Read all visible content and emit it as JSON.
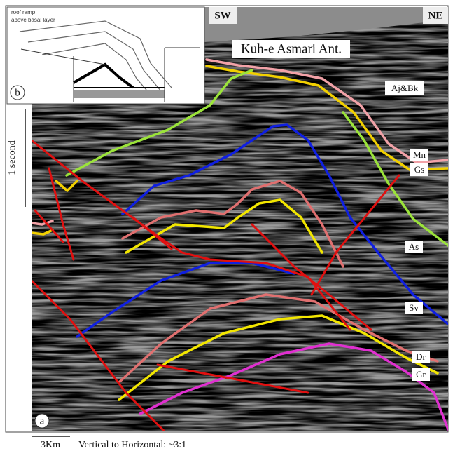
{
  "header": {
    "left": "SW",
    "right": "NE",
    "title": "Kuh-e Asmari Ant."
  },
  "horizons": [
    "Aj&Bk",
    "Mn",
    "Gs",
    "As",
    "Sv",
    "Dr",
    "Gr"
  ],
  "panels": {
    "a": "a",
    "b": "b"
  },
  "inset": {
    "label": "roof ramp",
    "sublabel": "above basal layer"
  },
  "scale": {
    "vertical": "1 second",
    "horizontal": "3Km",
    "note": "Vertical to Horizontal: ~3:1"
  }
}
